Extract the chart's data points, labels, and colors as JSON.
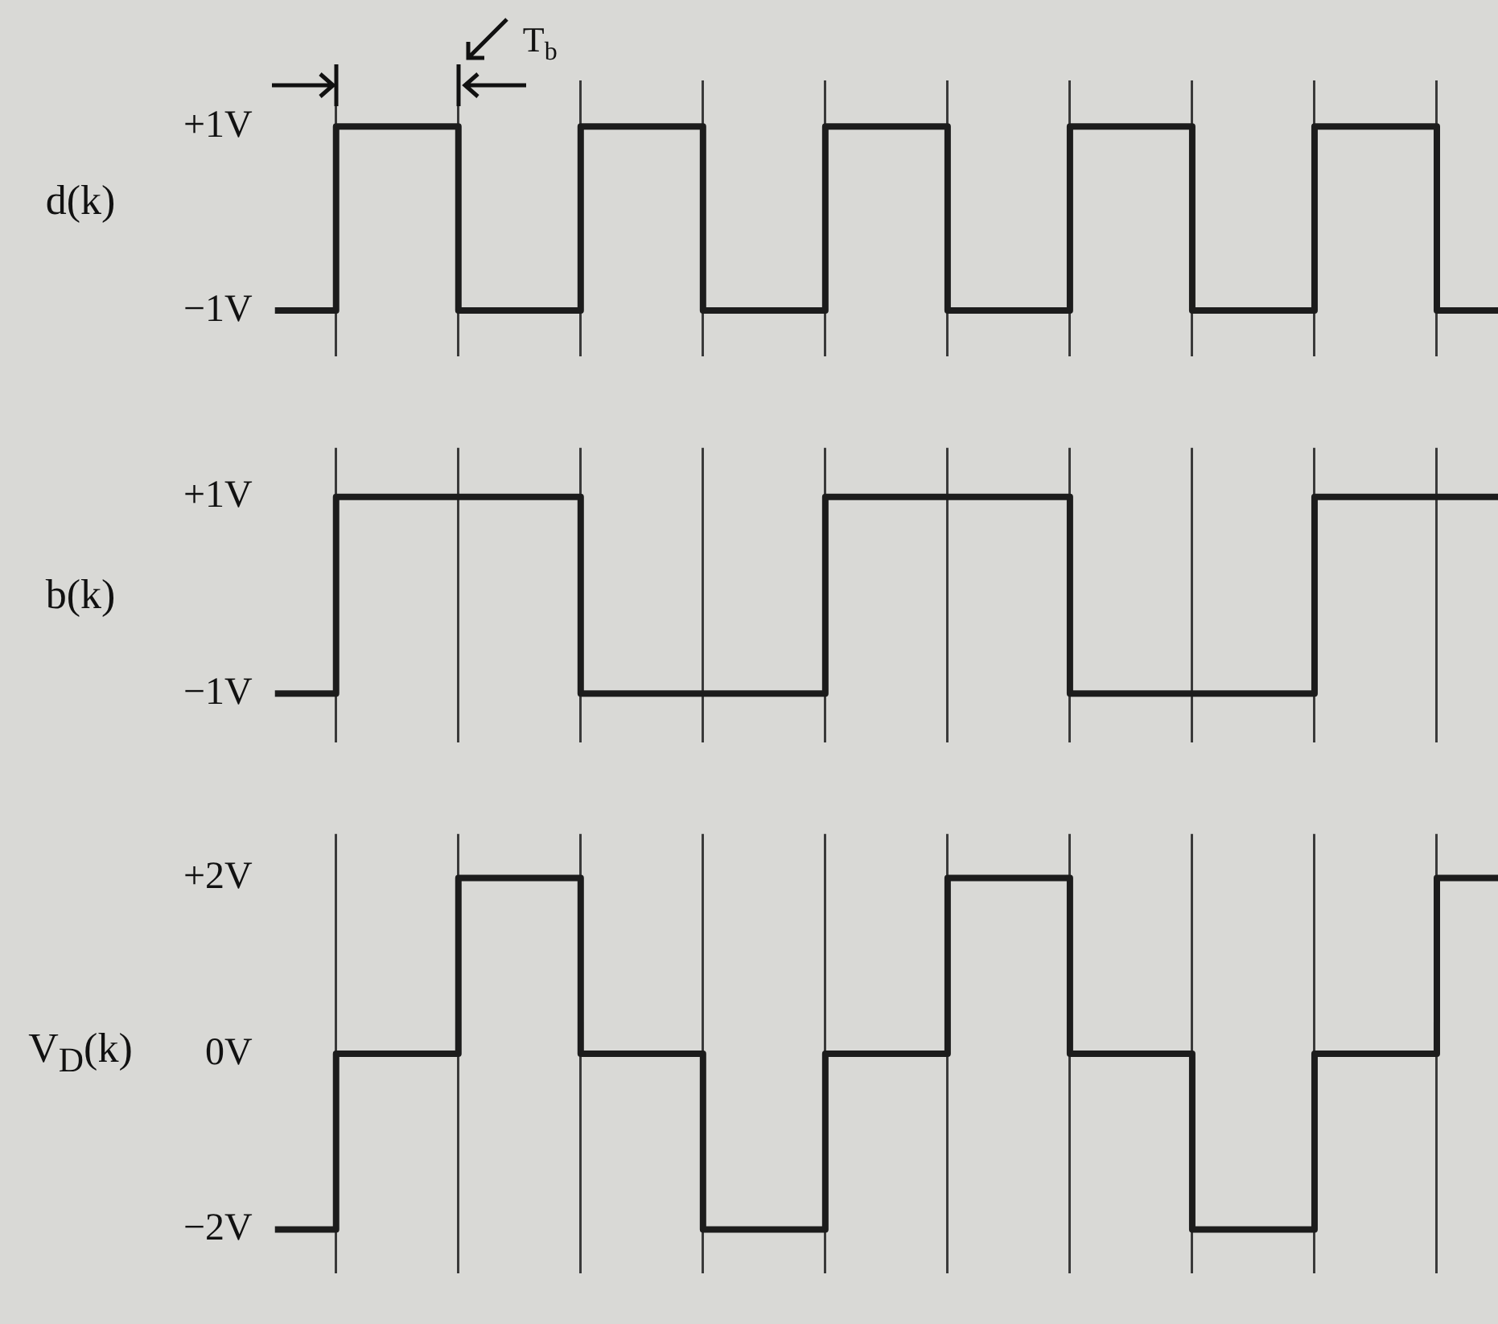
{
  "chart_data": [
    {
      "type": "step",
      "ylabel": "d(k)",
      "categories": [
        null,
        null,
        null,
        null,
        null,
        null,
        null,
        null,
        null,
        null,
        null
      ],
      "values": [
        -1,
        1,
        -1,
        1,
        -1,
        1,
        -1,
        1,
        -1,
        1,
        -1
      ],
      "color": "#1c1c1c",
      "ylim": [
        -1.5,
        1.5
      ],
      "yticks": [
        {
          "value": -1,
          "label": "−1V"
        },
        {
          "value": 1,
          "label": "+1V"
        }
      ],
      "grid": "x",
      "marker": "none",
      "tick_labels": "y",
      "annotations": [
        "T$_{b}$"
      ]
    },
    {
      "type": "step",
      "ylabel": "b(k)",
      "categories": [
        null,
        null,
        null,
        null,
        null,
        null,
        null,
        null,
        null,
        null,
        null
      ],
      "values": [
        -1,
        1,
        1,
        -1,
        -1,
        1,
        1,
        -1,
        -1,
        1,
        1
      ],
      "color": "#1c1c1c",
      "ylim": [
        -1.5,
        1.5
      ],
      "yticks": [
        {
          "value": -1,
          "label": "−1V"
        },
        {
          "value": 1,
          "label": "+1V"
        }
      ],
      "grid": "x",
      "marker": "none",
      "tick_labels": "y"
    },
    {
      "type": "step",
      "ylabel": "V$_{D}$(k)",
      "categories": [
        null,
        null,
        null,
        null,
        null,
        null,
        null,
        null,
        null,
        null,
        null
      ],
      "values": [
        -2,
        0,
        2,
        0,
        -2,
        0,
        2,
        0,
        -2,
        0,
        2
      ],
      "color": "#1c1c1c",
      "ylim": [
        -2.5,
        2.5
      ],
      "yticks": [
        {
          "value": -2,
          "label": "−2V"
        },
        {
          "value": 0,
          "label": "0V"
        },
        {
          "value": 2,
          "label": "+2V"
        }
      ],
      "grid": "x",
      "marker": "none",
      "tick_labels": "y"
    }
  ]
}
